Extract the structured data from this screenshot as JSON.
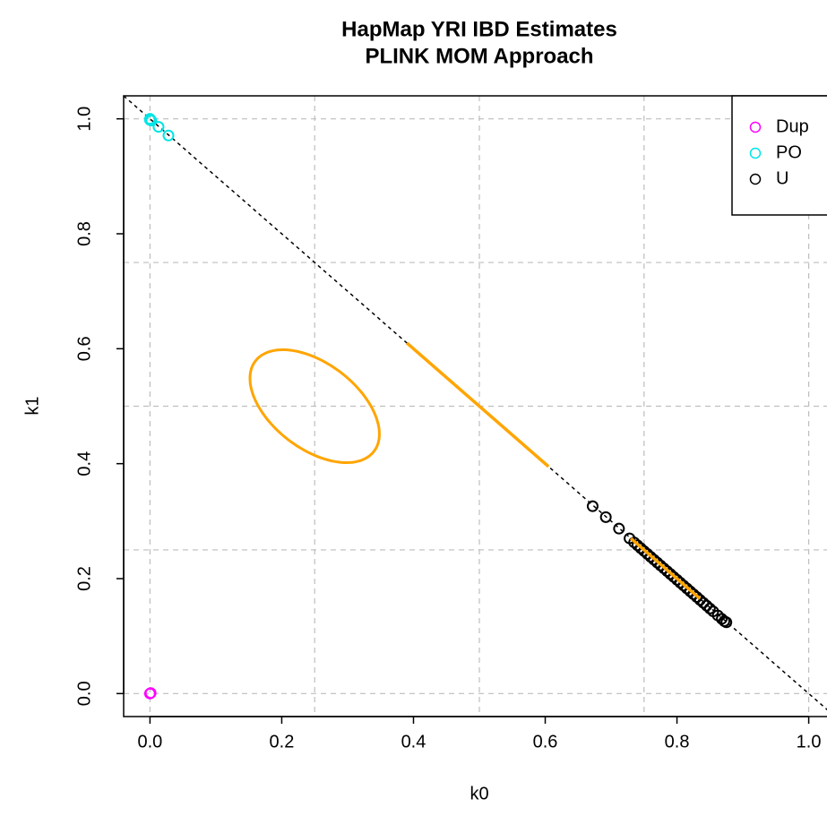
{
  "chart_data": {
    "type": "scatter",
    "title": "HapMap YRI IBD Estimates",
    "subtitle": "PLINK MOM Approach",
    "x_label": "k0",
    "y_label": "k1",
    "xlim": [
      -0.04,
      1.04
    ],
    "ylim": [
      -0.04,
      1.04
    ],
    "xticks": [
      {
        "value": 0,
        "label": "0.0"
      },
      {
        "value": 0.2,
        "label": "0.2"
      },
      {
        "value": 0.4,
        "label": "0.4"
      },
      {
        "value": 0.6,
        "label": "0.6"
      },
      {
        "value": 0.8,
        "label": "0.8"
      },
      {
        "value": 1,
        "label": "1.0"
      }
    ],
    "yticks": [
      {
        "value": 0,
        "label": "0.0"
      },
      {
        "value": 0.2,
        "label": "0.2"
      },
      {
        "value": 0.4,
        "label": "0.4"
      },
      {
        "value": 0.6,
        "label": "0.6"
      },
      {
        "value": 0.8,
        "label": "0.8"
      },
      {
        "value": 1,
        "label": "1.0"
      }
    ],
    "grid": true,
    "xgrid": [
      0,
      0.25,
      0.5,
      0.75,
      1
    ],
    "ygrid": [
      0,
      0.25,
      0.5,
      0.75,
      1
    ],
    "legend": "topright",
    "reference_line": {
      "intercept": 1,
      "slope": -1,
      "color": "#000000"
    },
    "series": [
      {
        "name": "Dup",
        "color": "#ff00ff",
        "x": [
          0,
          0.001
        ],
        "values": [
          0,
          0.001
        ]
      },
      {
        "name": "PO",
        "color": "#00e5e5",
        "x": [
          0,
          0,
          0.002,
          0.013,
          0.028
        ],
        "values": [
          1,
          0.998,
          0.997,
          0.986,
          0.971
        ]
      },
      {
        "name": "U",
        "color": "#000000",
        "x": [
          0.672,
          0.692,
          0.712,
          0.728,
          0.735,
          0.74,
          0.745,
          0.75,
          0.755,
          0.76,
          0.765,
          0.77,
          0.775,
          0.78,
          0.785,
          0.79,
          0.795,
          0.8,
          0.805,
          0.81,
          0.815,
          0.82,
          0.825,
          0.83,
          0.835,
          0.84,
          0.845,
          0.85,
          0.855,
          0.862,
          0.868,
          0.872,
          0.875
        ],
        "values": [
          0.326,
          0.307,
          0.287,
          0.27,
          0.263,
          0.258,
          0.253,
          0.248,
          0.243,
          0.238,
          0.233,
          0.228,
          0.223,
          0.218,
          0.213,
          0.208,
          0.203,
          0.198,
          0.193,
          0.188,
          0.183,
          0.178,
          0.173,
          0.168,
          0.163,
          0.158,
          0.153,
          0.148,
          0.143,
          0.136,
          0.13,
          0.126,
          0.124
        ]
      }
    ],
    "curves": [
      {
        "kind": "ellipse",
        "color": "#ffa500",
        "cx": 0.25,
        "cy": 0.5,
        "a": 0.12,
        "b": 0.07
      },
      {
        "kind": "segment",
        "color": "#ffa500",
        "x": [
          0.39,
          0.605
        ],
        "values": [
          0.61,
          0.395
        ]
      },
      {
        "kind": "segment",
        "color": "#ffa500",
        "x": [
          0.73,
          0.835
        ],
        "values": [
          0.27,
          0.165
        ]
      }
    ]
  }
}
